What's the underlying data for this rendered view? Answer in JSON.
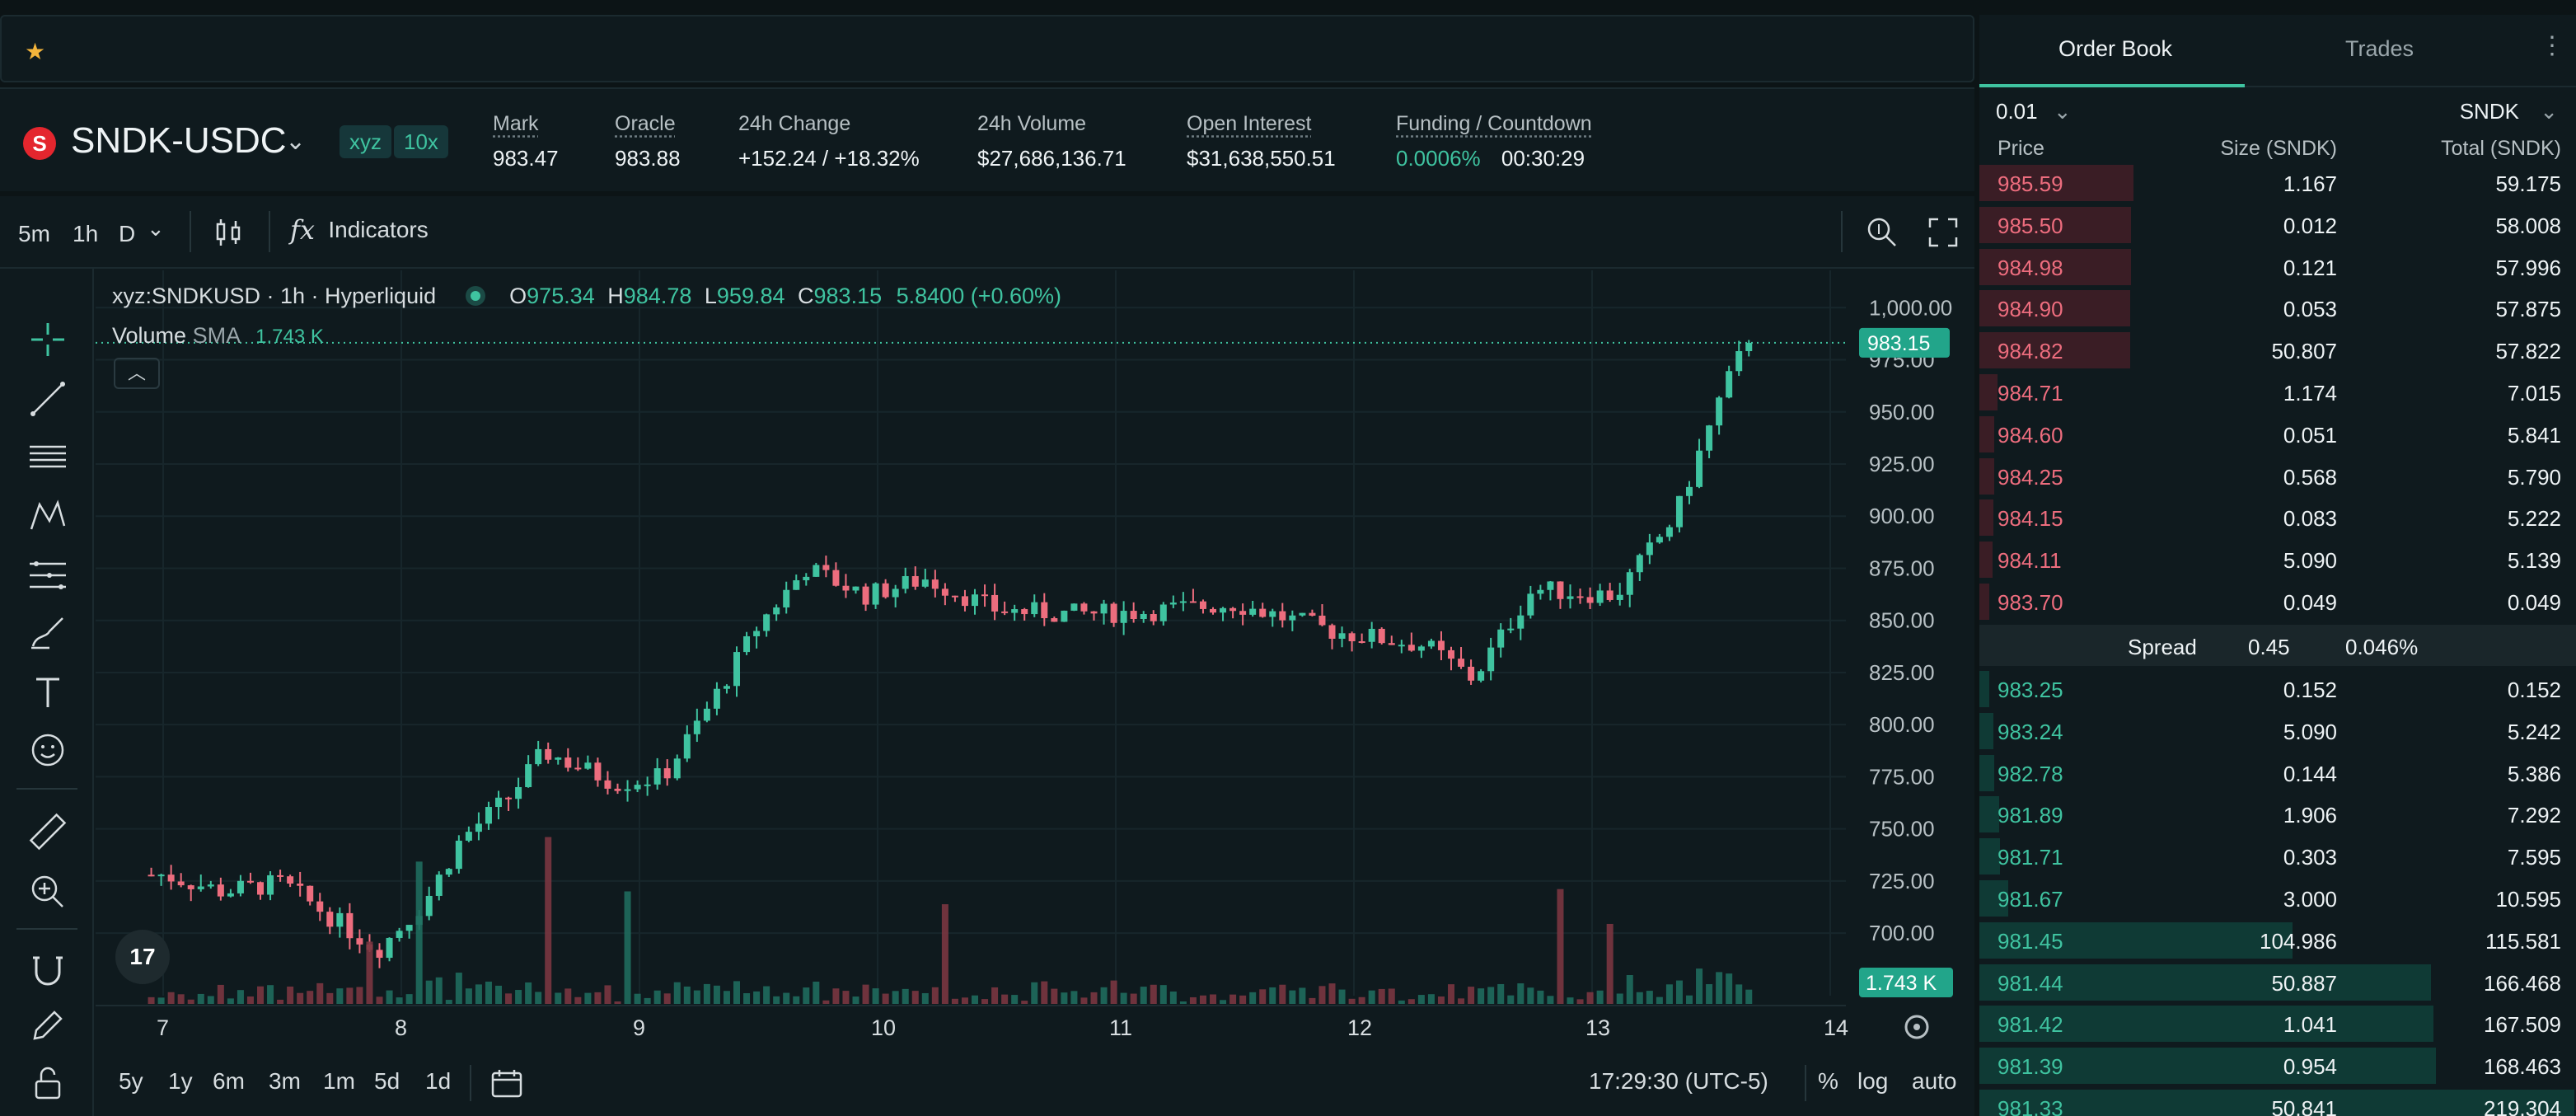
{
  "header": {
    "symbol": "SNDK-USDC",
    "coin_logo_letter": "S",
    "badges": [
      "xyz",
      "10x"
    ],
    "stats": [
      {
        "label": "Mark",
        "value": "983.47"
      },
      {
        "label": "Oracle",
        "value": "983.88"
      },
      {
        "label": "24h Change",
        "value": "+152.24 / +18.32%"
      },
      {
        "label": "24h Volume",
        "value": "$27,686,136.71"
      },
      {
        "label": "Open Interest",
        "value": "$31,638,550.51"
      },
      {
        "label": "Funding / Countdown",
        "value": "0.0006%",
        "value2": "00:30:29"
      }
    ]
  },
  "toolbar": {
    "timeframes": [
      "5m",
      "1h",
      "D"
    ],
    "active_timeframe": "1h",
    "indicators_label": "Indicators",
    "fx_label": "fx"
  },
  "chart": {
    "title": "xyz:SNDKUSD · 1h · Hyperliquid",
    "ohlc": {
      "o_label": "O",
      "o": "975.34",
      "h_label": "H",
      "h": "984.78",
      "l_label": "L",
      "l": "959.84",
      "c_label": "C",
      "c": "983.15",
      "chg": "5.8400 (+0.60%)"
    },
    "volume_label": "Volume",
    "volume_sma": "SMA",
    "volume_value": "1.743 K",
    "price_tag": "983.15",
    "volume_tag": "1.743 K",
    "tv_logo": "17",
    "ranges": [
      "5y",
      "1y",
      "6m",
      "3m",
      "1m",
      "5d",
      "1d"
    ],
    "clock": "17:29:30 (UTC-5)",
    "pct_label": "%",
    "log_label": "log",
    "auto_label": "auto"
  },
  "chart_data": {
    "type": "candlestick",
    "title": "xyz:SNDKUSD · 1h · Hyperliquid",
    "y_ticks": [
      "1,000.00",
      "975.00",
      "950.00",
      "925.00",
      "900.00",
      "875.00",
      "850.00",
      "825.00",
      "800.00",
      "775.00",
      "750.00",
      "725.00",
      "700.00"
    ],
    "x_ticks": [
      "7",
      "8",
      "9",
      "10",
      "11",
      "12",
      "13",
      "14"
    ],
    "ylim": [
      670,
      1010
    ],
    "grid": true,
    "close_trace": [
      {
        "day": 7.0,
        "close": 728
      },
      {
        "day": 7.25,
        "close": 720
      },
      {
        "day": 7.5,
        "close": 724
      },
      {
        "day": 7.7,
        "close": 708
      },
      {
        "day": 7.9,
        "close": 692
      },
      {
        "day": 8.1,
        "close": 715
      },
      {
        "day": 8.25,
        "close": 745
      },
      {
        "day": 8.45,
        "close": 765
      },
      {
        "day": 8.6,
        "close": 787
      },
      {
        "day": 8.9,
        "close": 772
      },
      {
        "day": 9.1,
        "close": 775
      },
      {
        "day": 9.3,
        "close": 810
      },
      {
        "day": 9.5,
        "close": 848
      },
      {
        "day": 9.7,
        "close": 875
      },
      {
        "day": 9.95,
        "close": 862
      },
      {
        "day": 10.2,
        "close": 870
      },
      {
        "day": 10.5,
        "close": 855
      },
      {
        "day": 10.8,
        "close": 853
      },
      {
        "day": 11.1,
        "close": 854
      },
      {
        "day": 11.5,
        "close": 858
      },
      {
        "day": 11.9,
        "close": 845
      },
      {
        "day": 12.3,
        "close": 838
      },
      {
        "day": 12.5,
        "close": 822
      },
      {
        "day": 12.75,
        "close": 865
      },
      {
        "day": 13.1,
        "close": 862
      },
      {
        "day": 13.35,
        "close": 900
      },
      {
        "day": 13.55,
        "close": 960
      },
      {
        "day": 13.65,
        "close": 983.15
      }
    ],
    "volume_label": "Volume SMA 1.743 K"
  },
  "order_book": {
    "tabs": [
      "Order Book",
      "Trades"
    ],
    "tick_size": "0.01",
    "unit": "SNDK",
    "columns": [
      "Price",
      "Size (SNDK)",
      "Total (SNDK)"
    ],
    "asks": [
      {
        "price": "985.59",
        "size": "1.167",
        "total": "59.175"
      },
      {
        "price": "985.50",
        "size": "0.012",
        "total": "58.008"
      },
      {
        "price": "984.98",
        "size": "0.121",
        "total": "57.996"
      },
      {
        "price": "984.90",
        "size": "0.053",
        "total": "57.875"
      },
      {
        "price": "984.82",
        "size": "50.807",
        "total": "57.822"
      },
      {
        "price": "984.71",
        "size": "1.174",
        "total": "7.015"
      },
      {
        "price": "984.60",
        "size": "0.051",
        "total": "5.841"
      },
      {
        "price": "984.25",
        "size": "0.568",
        "total": "5.790"
      },
      {
        "price": "984.15",
        "size": "0.083",
        "total": "5.222"
      },
      {
        "price": "984.11",
        "size": "5.090",
        "total": "5.139"
      },
      {
        "price": "983.70",
        "size": "0.049",
        "total": "0.049"
      }
    ],
    "spread_label": "Spread",
    "spread_value": "0.45",
    "spread_pct": "0.046%",
    "bids": [
      {
        "price": "983.25",
        "size": "0.152",
        "total": "0.152"
      },
      {
        "price": "983.24",
        "size": "5.090",
        "total": "5.242"
      },
      {
        "price": "982.78",
        "size": "0.144",
        "total": "5.386"
      },
      {
        "price": "981.89",
        "size": "1.906",
        "total": "7.292"
      },
      {
        "price": "981.71",
        "size": "0.303",
        "total": "7.595"
      },
      {
        "price": "981.67",
        "size": "3.000",
        "total": "10.595"
      },
      {
        "price": "981.45",
        "size": "104.986",
        "total": "115.581"
      },
      {
        "price": "981.44",
        "size": "50.887",
        "total": "166.468"
      },
      {
        "price": "981.42",
        "size": "1.041",
        "total": "167.509"
      },
      {
        "price": "981.39",
        "size": "0.954",
        "total": "168.463"
      },
      {
        "price": "981.33",
        "size": "50.841",
        "total": "219.304"
      }
    ]
  },
  "colors": {
    "up": "#3fc3a0",
    "down": "#ed6d7e",
    "bg": "#0f1a1e",
    "accent": "#3fc3a0"
  }
}
